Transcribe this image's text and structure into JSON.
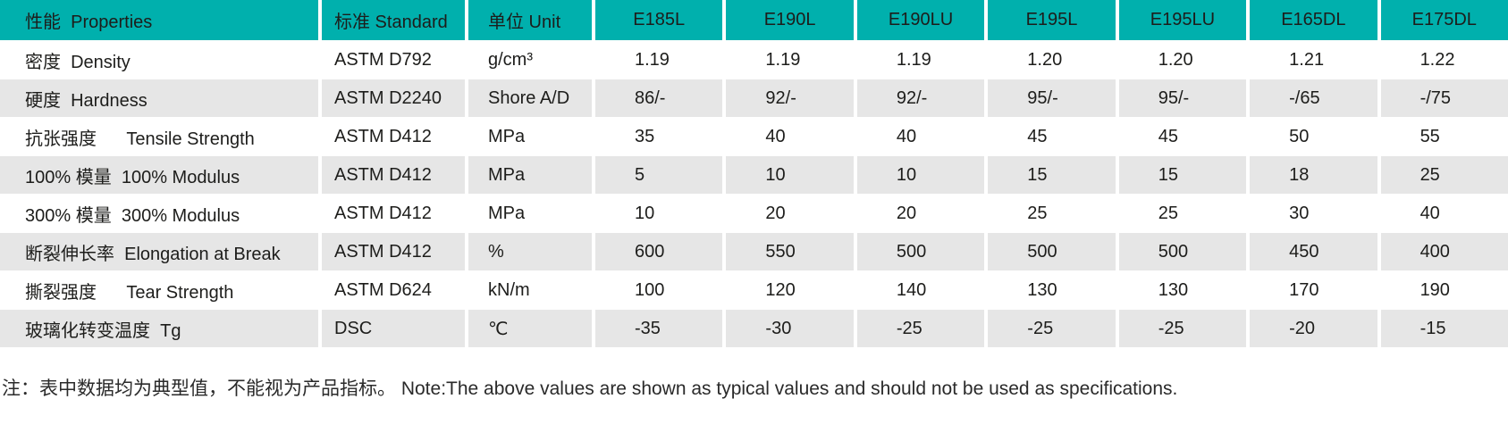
{
  "colors": {
    "header_teal": "#00b0ad",
    "stripe_gray": "#e6e6e6",
    "text": "#1d1d1b"
  },
  "table": {
    "columns": [
      "性能  Properties",
      "标准 Standard",
      "单位 Unit",
      "E185L",
      "E190L",
      "E190LU",
      "E195L",
      "E195LU",
      "E165DL",
      "E175DL"
    ],
    "rows": [
      [
        "密度  Density",
        "ASTM D792",
        "g/cm³",
        "1.19",
        "1.19",
        "1.19",
        "1.20",
        "1.20",
        "1.21",
        "1.22"
      ],
      [
        "硬度  Hardness",
        "ASTM D2240",
        "Shore A/D",
        "86/-",
        "92/-",
        "92/-",
        "95/-",
        "95/-",
        "-/65",
        "-/75"
      ],
      [
        "抗张强度      Tensile Strength",
        "ASTM D412",
        "MPa",
        "35",
        "40",
        "40",
        "45",
        "45",
        "50",
        "55"
      ],
      [
        "100% 模量  100% Modulus",
        "ASTM D412",
        "MPa",
        "5",
        "10",
        "10",
        "15",
        "15",
        "18",
        "25"
      ],
      [
        "300% 模量  300% Modulus",
        "ASTM D412",
        "MPa",
        "10",
        "20",
        "20",
        "25",
        "25",
        "30",
        "40"
      ],
      [
        "断裂伸长率  Elongation at Break",
        "ASTM D412",
        "%",
        "600",
        "550",
        "500",
        "500",
        "500",
        "450",
        "400"
      ],
      [
        "撕裂强度      Tear Strength",
        "ASTM D624",
        "kN/m",
        "100",
        "120",
        "140",
        "130",
        "130",
        "170",
        "190"
      ],
      [
        "玻璃化转变温度  Tg",
        "DSC",
        "℃",
        "-35",
        "-30",
        "-25",
        "-25",
        "-25",
        "-20",
        "-15"
      ]
    ]
  },
  "note": {
    "text": "注：表中数据均为典型值，不能视为产品指标。 Note:The above values are shown as typical values and should not be used as specifications."
  }
}
